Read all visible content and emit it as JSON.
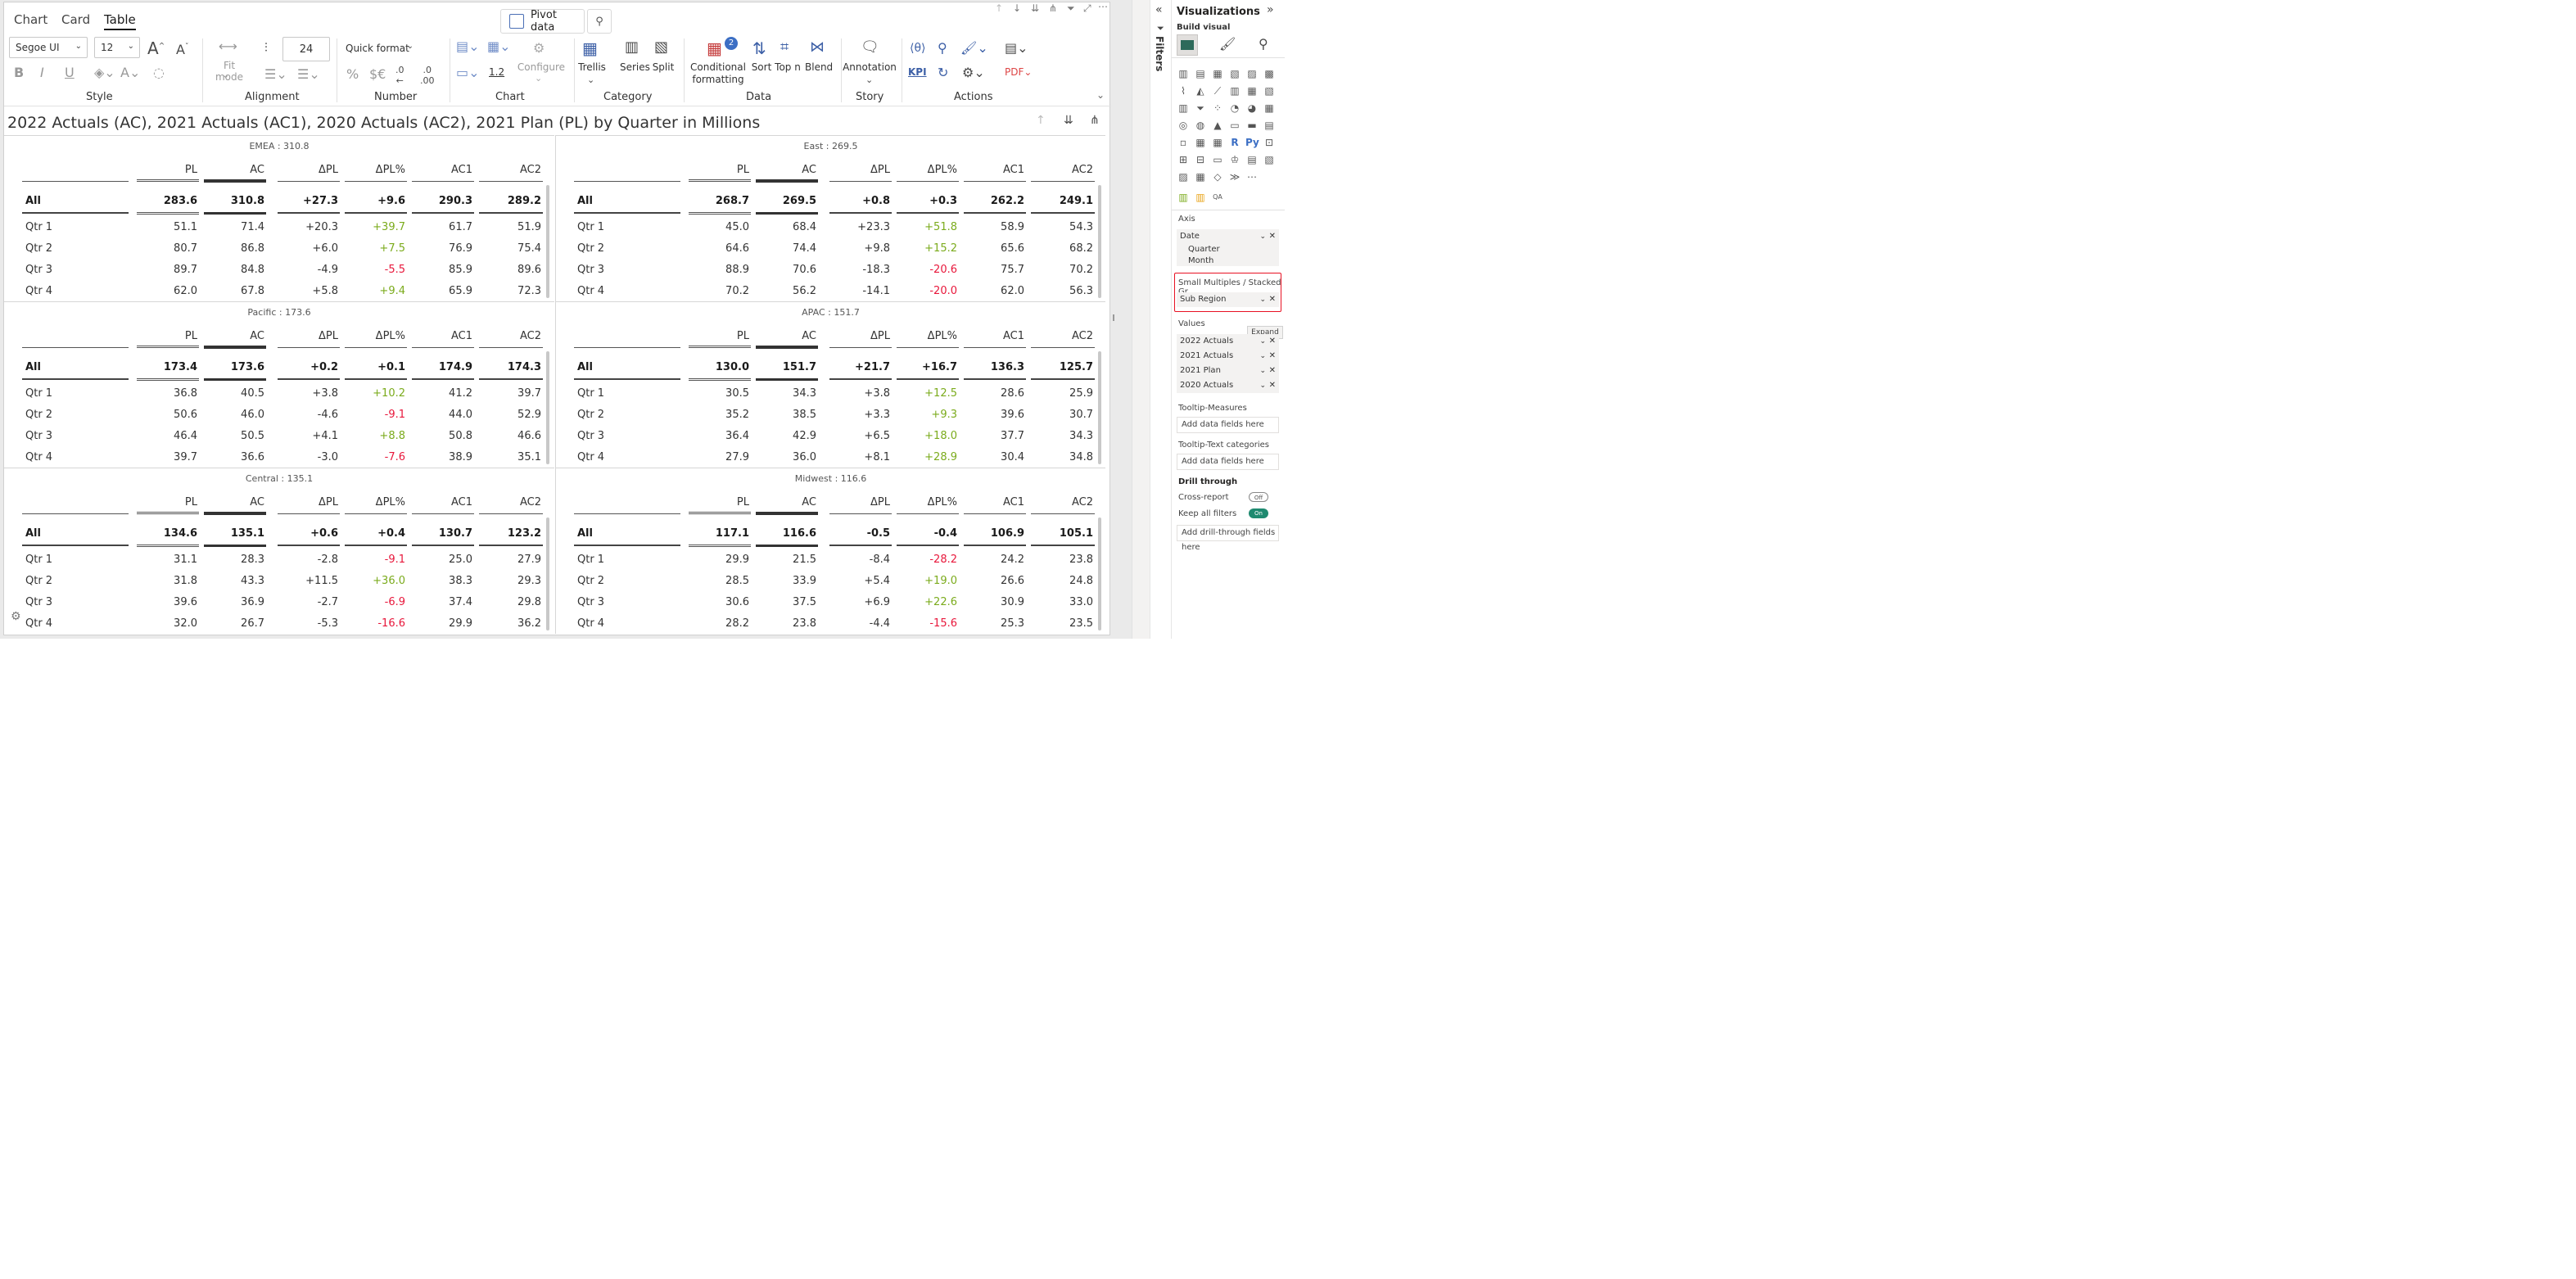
{
  "ribbon": {
    "tabs": [
      "Chart",
      "Card",
      "Table"
    ],
    "active_tab": "Table",
    "pivot_label": "Pivot data",
    "font_family": "Segoe UI",
    "font_size": "12",
    "row_height": "24",
    "quick_format": "Quick format",
    "fit_mode": "Fit mode",
    "configure": "Configure",
    "decimal_sample": "1.2",
    "buttons": {
      "trellis": "Trellis",
      "series": "Series",
      "split": "Split",
      "conditional_formatting": "Conditional formatting",
      "cf_badge": "2",
      "sort": "Sort",
      "top_n": "Top n",
      "blend": "Blend",
      "annotation": "Annotation",
      "kpi": "KPI"
    },
    "groups": [
      "Style",
      "Alignment",
      "Number",
      "Chart",
      "Category",
      "Data",
      "Story",
      "Actions"
    ]
  },
  "chart_title": "2022 Actuals (AC), 2021 Actuals (AC1), 2020 Actuals (AC2), 2021 Plan (PL) by Quarter in Millions",
  "columns": [
    "PL",
    "AC",
    "ΔPL",
    "ΔPL%",
    "AC1",
    "AC2"
  ],
  "panels": [
    {
      "title": "EMEA : 310.8",
      "all": [
        "283.6",
        "310.8",
        "+27.3",
        "+9.6",
        "290.3",
        "289.2"
      ],
      "rows": [
        {
          "label": "Qtr 1",
          "values": [
            "51.1",
            "71.4",
            "+20.3",
            "+39.7",
            "61.7",
            "51.9"
          ]
        },
        {
          "label": "Qtr 2",
          "values": [
            "80.7",
            "86.8",
            "+6.0",
            "+7.5",
            "76.9",
            "75.4"
          ]
        },
        {
          "label": "Qtr 3",
          "values": [
            "89.7",
            "84.8",
            "-4.9",
            "-5.5",
            "85.9",
            "89.6"
          ]
        },
        {
          "label": "Qtr 4",
          "values": [
            "62.0",
            "67.8",
            "+5.8",
            "+9.4",
            "65.9",
            "72.3"
          ]
        }
      ]
    },
    {
      "title": "East : 269.5",
      "all": [
        "268.7",
        "269.5",
        "+0.8",
        "+0.3",
        "262.2",
        "249.1"
      ],
      "rows": [
        {
          "label": "Qtr 1",
          "values": [
            "45.0",
            "68.4",
            "+23.3",
            "+51.8",
            "58.9",
            "54.3"
          ]
        },
        {
          "label": "Qtr 2",
          "values": [
            "64.6",
            "74.4",
            "+9.8",
            "+15.2",
            "65.6",
            "68.2"
          ]
        },
        {
          "label": "Qtr 3",
          "values": [
            "88.9",
            "70.6",
            "-18.3",
            "-20.6",
            "75.7",
            "70.2"
          ]
        },
        {
          "label": "Qtr 4",
          "values": [
            "70.2",
            "56.2",
            "-14.1",
            "-20.0",
            "62.0",
            "56.3"
          ]
        }
      ]
    },
    {
      "title": "Pacific : 173.6",
      "all": [
        "173.4",
        "173.6",
        "+0.2",
        "+0.1",
        "174.9",
        "174.3"
      ],
      "rows": [
        {
          "label": "Qtr 1",
          "values": [
            "36.8",
            "40.5",
            "+3.8",
            "+10.2",
            "41.2",
            "39.7"
          ]
        },
        {
          "label": "Qtr 2",
          "values": [
            "50.6",
            "46.0",
            "-4.6",
            "-9.1",
            "44.0",
            "52.9"
          ]
        },
        {
          "label": "Qtr 3",
          "values": [
            "46.4",
            "50.5",
            "+4.1",
            "+8.8",
            "50.8",
            "46.6"
          ]
        },
        {
          "label": "Qtr 4",
          "values": [
            "39.7",
            "36.6",
            "-3.0",
            "-7.6",
            "38.9",
            "35.1"
          ]
        }
      ]
    },
    {
      "title": "APAC : 151.7",
      "all": [
        "130.0",
        "151.7",
        "+21.7",
        "+16.7",
        "136.3",
        "125.7"
      ],
      "rows": [
        {
          "label": "Qtr 1",
          "values": [
            "30.5",
            "34.3",
            "+3.8",
            "+12.5",
            "28.6",
            "25.9"
          ]
        },
        {
          "label": "Qtr 2",
          "values": [
            "35.2",
            "38.5",
            "+3.3",
            "+9.3",
            "39.6",
            "30.7"
          ]
        },
        {
          "label": "Qtr 3",
          "values": [
            "36.4",
            "42.9",
            "+6.5",
            "+18.0",
            "37.7",
            "34.3"
          ]
        },
        {
          "label": "Qtr 4",
          "values": [
            "27.9",
            "36.0",
            "+8.1",
            "+28.9",
            "30.4",
            "34.8"
          ]
        }
      ]
    },
    {
      "title": "Central : 135.1",
      "all": [
        "134.6",
        "135.1",
        "+0.6",
        "+0.4",
        "130.7",
        "123.2"
      ],
      "rows": [
        {
          "label": "Qtr 1",
          "values": [
            "31.1",
            "28.3",
            "-2.8",
            "-9.1",
            "25.0",
            "27.9"
          ]
        },
        {
          "label": "Qtr 2",
          "values": [
            "31.8",
            "43.3",
            "+11.5",
            "+36.0",
            "38.3",
            "29.3"
          ]
        },
        {
          "label": "Qtr 3",
          "values": [
            "39.6",
            "36.9",
            "-2.7",
            "-6.9",
            "37.4",
            "29.8"
          ]
        },
        {
          "label": "Qtr 4",
          "values": [
            "32.0",
            "26.7",
            "-5.3",
            "-16.6",
            "29.9",
            "36.2"
          ]
        }
      ]
    },
    {
      "title": "Midwest : 116.6",
      "all": [
        "117.1",
        "116.6",
        "-0.5",
        "-0.4",
        "106.9",
        "105.1"
      ],
      "rows": [
        {
          "label": "Qtr 1",
          "values": [
            "29.9",
            "21.5",
            "-8.4",
            "-28.2",
            "24.2",
            "23.8"
          ]
        },
        {
          "label": "Qtr 2",
          "values": [
            "28.5",
            "33.9",
            "+5.4",
            "+19.0",
            "26.6",
            "24.8"
          ]
        },
        {
          "label": "Qtr 3",
          "values": [
            "30.6",
            "37.5",
            "+6.9",
            "+22.6",
            "30.9",
            "33.0"
          ]
        },
        {
          "label": "Qtr 4",
          "values": [
            "28.2",
            "23.8",
            "-4.4",
            "-15.6",
            "25.3",
            "23.5"
          ]
        }
      ]
    }
  ],
  "all_label": "All",
  "viz_pane": {
    "title": "Visualizations",
    "subtitle": "Build visual",
    "filters_label": "Filters",
    "axis_label": "Axis",
    "axis_fields": [
      "Date",
      "Quarter",
      "Month"
    ],
    "small_multiples_label": "Small Multiples / Stacked Gr...",
    "small_multiples_field": "Sub Region",
    "values_label": "Values",
    "expand_tooltip": "Expand",
    "value_fields": [
      "2022 Actuals",
      "2021 Actuals",
      "2021 Plan",
      "2020 Actuals"
    ],
    "tooltip_measures_label": "Tooltip-Measures",
    "tooltip_text_label": "Tooltip-Text categories",
    "add_data_fields": "Add data fields here",
    "drill_through_label": "Drill through",
    "cross_report_label": "Cross-report",
    "cross_report_state": "Off",
    "keep_filters_label": "Keep all filters",
    "keep_filters_state": "On",
    "add_drill_fields": "Add drill-through fields here",
    "accent": "#e81123"
  }
}
